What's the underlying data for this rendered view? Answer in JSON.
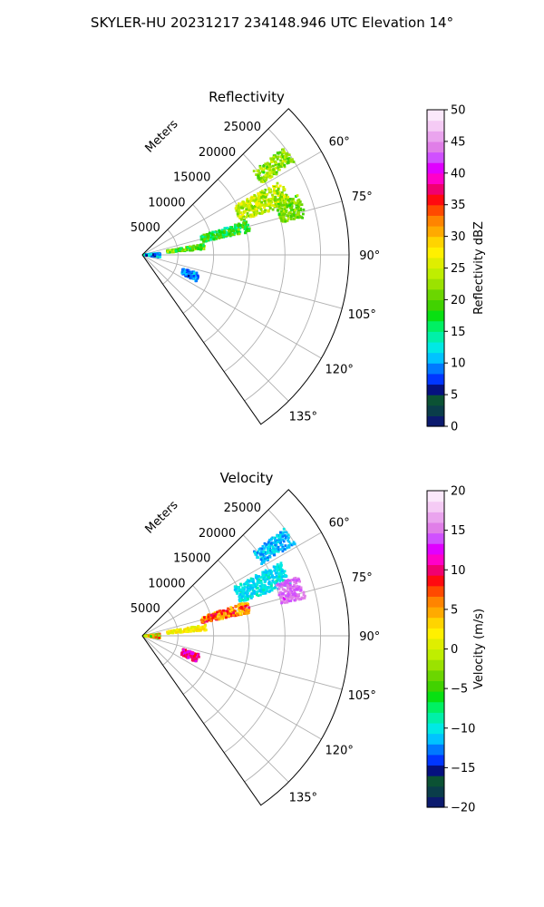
{
  "suptitle": "SKYLER-HU  20231217  234148.946 UTC Elevation 14°",
  "chart_data": [
    {
      "type": "heatmap",
      "projection": "polar-sector",
      "title": "Reflectivity",
      "radial_axis_label": "Meters",
      "radial_ticks": [
        5000,
        10000,
        15000,
        20000,
        25000
      ],
      "radial_tick_labels": [
        "5000",
        "10000",
        "15000",
        "20000",
        "25000"
      ],
      "rlim": [
        0,
        29000
      ],
      "azimuth_range_deg": [
        45,
        145
      ],
      "azimuth_ticks": [
        60,
        75,
        90,
        105,
        120,
        135
      ],
      "azimuth_tick_labels": [
        "60°",
        "75°",
        "90°",
        "105°",
        "120°",
        "135°"
      ],
      "grid": true,
      "colorbar": {
        "label": "Reflectivity dBZ",
        "range": [
          0,
          50
        ],
        "ticks": [
          0,
          5,
          10,
          15,
          20,
          25,
          30,
          35,
          40,
          45,
          50
        ],
        "tick_labels": [
          "0",
          "5",
          "10",
          "15",
          "20",
          "25",
          "30",
          "35",
          "40",
          "45",
          "50"
        ],
        "colors": [
          "#0b1a6e",
          "#0a3d4a",
          "#0b5234",
          "#05117f",
          "#0036ff",
          "#0079ff",
          "#00c3ff",
          "#00e9e4",
          "#00f0a8",
          "#00f063",
          "#08e012",
          "#41d200",
          "#6bd600",
          "#9be200",
          "#bfee00",
          "#dfee00",
          "#fff000",
          "#ffd400",
          "#ffaa00",
          "#ff8400",
          "#ff4a00",
          "#ff0a10",
          "#f00070",
          "#ff00c8",
          "#e000ff",
          "#d050ff",
          "#e07ee8",
          "#eaa4ee",
          "#f5cbf5",
          "#fbe8fb"
        ]
      },
      "echo_regions": [
        {
          "az_deg": [
            53,
            59
          ],
          "range_m": [
            19500,
            25000
          ],
          "value_dbz": [
            18,
            26
          ]
        },
        {
          "az_deg": [
            62,
            71
          ],
          "range_m": [
            14500,
            22000
          ],
          "value_dbz": [
            20,
            28
          ]
        },
        {
          "az_deg": [
            72,
            78
          ],
          "range_m": [
            8500,
            15500
          ],
          "value_dbz": [
            13,
            22
          ]
        },
        {
          "az_deg": [
            69,
            77
          ],
          "range_m": [
            20000,
            23500
          ],
          "value_dbz": [
            18,
            24
          ]
        },
        {
          "az_deg": [
            80,
            85
          ],
          "range_m": [
            3500,
            9000
          ],
          "value_dbz": [
            15,
            25
          ]
        },
        {
          "az_deg": [
            84,
            98
          ],
          "range_m": [
            200,
            2500
          ],
          "value_dbz": [
            6,
            14
          ]
        },
        {
          "az_deg": [
            108,
            116
          ],
          "range_m": [
            6000,
            8500
          ],
          "value_dbz": [
            6,
            12
          ]
        }
      ]
    },
    {
      "type": "heatmap",
      "projection": "polar-sector",
      "title": "Velocity",
      "radial_axis_label": "Meters",
      "radial_ticks": [
        5000,
        10000,
        15000,
        20000,
        25000
      ],
      "radial_tick_labels": [
        "5000",
        "10000",
        "15000",
        "20000",
        "25000"
      ],
      "rlim": [
        0,
        29000
      ],
      "azimuth_range_deg": [
        45,
        145
      ],
      "azimuth_ticks": [
        60,
        75,
        90,
        105,
        120,
        135
      ],
      "azimuth_tick_labels": [
        "60°",
        "75°",
        "90°",
        "105°",
        "120°",
        "135°"
      ],
      "grid": true,
      "colorbar": {
        "label": "Velocity (m/s)",
        "range": [
          -20,
          20
        ],
        "ticks": [
          -20,
          -15,
          -10,
          -5,
          0,
          5,
          10,
          15,
          20
        ],
        "tick_labels": [
          "−20",
          "−15",
          "−10",
          "−5",
          "0",
          "5",
          "10",
          "15",
          "20"
        ],
        "colors": [
          "#0b1a6e",
          "#0a3d4a",
          "#0b5234",
          "#05117f",
          "#0036ff",
          "#0079ff",
          "#00c3ff",
          "#00e9e4",
          "#00f0a8",
          "#00f063",
          "#08e012",
          "#41d200",
          "#6bd600",
          "#9be200",
          "#bfee00",
          "#dfee00",
          "#fff000",
          "#ffd400",
          "#ffaa00",
          "#ff8400",
          "#ff4a00",
          "#ff0a10",
          "#f00070",
          "#ff00c8",
          "#e000ff",
          "#d050ff",
          "#e07ee8",
          "#eaa4ee",
          "#f5cbf5",
          "#fbe8fb"
        ]
      },
      "echo_regions": [
        {
          "az_deg": [
            53,
            59
          ],
          "range_m": [
            19500,
            25000
          ],
          "value_ms": [
            -13,
            -10
          ]
        },
        {
          "az_deg": [
            62,
            71
          ],
          "range_m": [
            14500,
            22000
          ],
          "value_ms": [
            -12,
            -9
          ]
        },
        {
          "az_deg": [
            72,
            78
          ],
          "range_m": [
            8500,
            15500
          ],
          "value_ms": [
            2,
            10
          ]
        },
        {
          "az_deg": [
            69,
            77
          ],
          "range_m": [
            20000,
            23500
          ],
          "value_ms": [
            13,
            16
          ]
        },
        {
          "az_deg": [
            80,
            85
          ],
          "range_m": [
            3500,
            9000
          ],
          "value_ms": [
            0,
            4
          ]
        },
        {
          "az_deg": [
            84,
            98
          ],
          "range_m": [
            200,
            2500
          ],
          "value_ms": [
            -6,
            10
          ]
        },
        {
          "az_deg": [
            108,
            116
          ],
          "range_m": [
            6000,
            8500
          ],
          "value_ms": [
            8,
            13
          ]
        }
      ]
    }
  ]
}
